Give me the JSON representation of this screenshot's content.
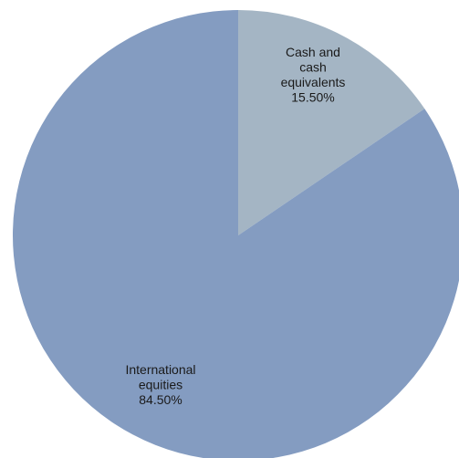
{
  "chart_data": {
    "type": "pie",
    "title": "",
    "slices": [
      {
        "label_lines": [
          "Cash and",
          "cash",
          "equivalents"
        ],
        "value": 15.5,
        "value_label": "15.50%",
        "color": "#a4b5c4"
      },
      {
        "label_lines": [
          "International",
          "equities"
        ],
        "value": 84.5,
        "value_label": "84.50%",
        "color": "#849cc1"
      }
    ],
    "start_angle_deg": 0,
    "direction": "clockwise",
    "legend": "none"
  }
}
